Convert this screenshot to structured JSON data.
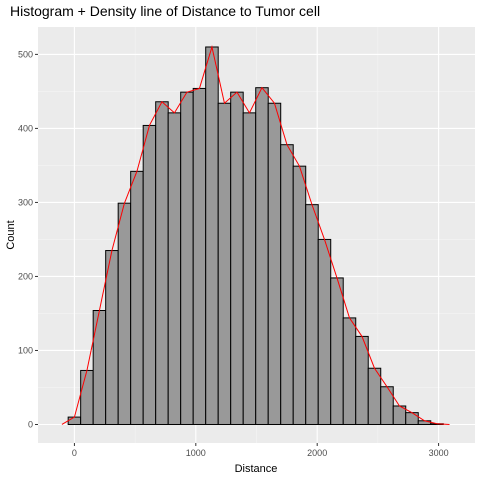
{
  "chart_data": {
    "type": "bar",
    "subtype": "histogram-with-density-line",
    "title": "Histogram + Density line of Distance to Tumor cell",
    "xlabel": "Distance",
    "ylabel": "Count",
    "xlim": [
      -300,
      3300
    ],
    "ylim": [
      -25,
      537
    ],
    "x_ticks": [
      0,
      1000,
      2000,
      3000
    ],
    "y_ticks": [
      0,
      100,
      200,
      300,
      400,
      500
    ],
    "bin_width": 103,
    "bin_centers": [
      0,
      103,
      206,
      309,
      412,
      515,
      618,
      721,
      824,
      927,
      1030,
      1133,
      1236,
      1339,
      1442,
      1545,
      1648,
      1751,
      1854,
      1957,
      2060,
      2163,
      2266,
      2369,
      2472,
      2575,
      2678,
      2781,
      2884,
      2987
    ],
    "counts": [
      10,
      73,
      154,
      235,
      299,
      342,
      404,
      436,
      421,
      449,
      454,
      510,
      434,
      449,
      421,
      455,
      434,
      378,
      349,
      297,
      250,
      198,
      144,
      119,
      76,
      51,
      25,
      16,
      5,
      1
    ],
    "density_line": {
      "x": [
        -103,
        0,
        103,
        206,
        309,
        412,
        515,
        618,
        721,
        824,
        927,
        1030,
        1133,
        1236,
        1339,
        1442,
        1545,
        1648,
        1751,
        1854,
        1957,
        2060,
        2163,
        2266,
        2369,
        2472,
        2575,
        2678,
        2781,
        2884,
        2987,
        3090
      ],
      "y": [
        0,
        10,
        73,
        154,
        235,
        299,
        342,
        404,
        436,
        421,
        449,
        454,
        510,
        434,
        449,
        421,
        455,
        434,
        378,
        349,
        297,
        250,
        198,
        144,
        119,
        76,
        51,
        25,
        16,
        5,
        1,
        0
      ],
      "color": "#ff0000"
    },
    "bar_fill": "#999999",
    "bar_outline": "#000000",
    "panel_background": "#ebebeb",
    "grid": true,
    "legend": "none"
  }
}
